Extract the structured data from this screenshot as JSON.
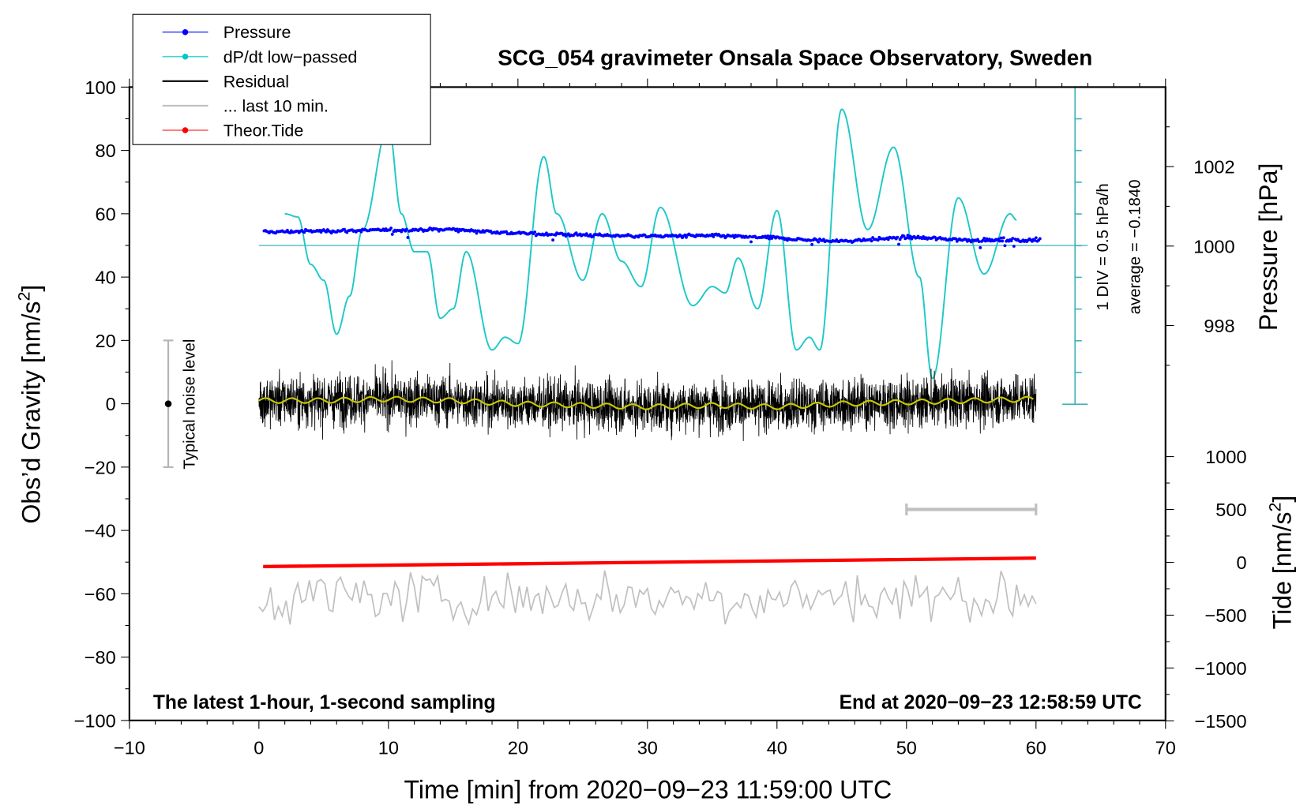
{
  "chart_data": {
    "type": "line",
    "title": "SCG_054 gravimeter Onsala Space Observatory, Sweden",
    "xlabel": "Time [min] from 2020−09−23 11:59:00 UTC",
    "ylabel_left": "Obs’d Gravity [nm/s",
    "ylabel_left_sup": "2",
    "ylabel_left_end": "]",
    "ylabel_right_pressure": "Pressure [hPa]",
    "ylabel_right_tide": "Tide [nm/s",
    "ylabel_right_tide_sup": "2",
    "ylabel_right_tide_end": "]",
    "xlim": [
      -10,
      70
    ],
    "ylim_left": [
      -100,
      100
    ],
    "x_ticks": [
      "−10",
      "0",
      "10",
      "20",
      "30",
      "40",
      "50",
      "60",
      "70"
    ],
    "y_ticks_left": [
      "100",
      "80",
      "60",
      "40",
      "20",
      "0",
      "−20",
      "−40",
      "−60",
      "−80",
      "−100"
    ],
    "pressure_ticks": [
      "1002",
      "1000",
      "998"
    ],
    "tide_ticks": [
      "1000",
      "500",
      "0",
      "−500",
      "−1000",
      "−1500"
    ],
    "note_left": "The latest 1-hour, 1-second sampling",
    "note_right": "End at 2020−09−23 12:58:59 UTC",
    "dpdt_scale_label": "1 DIV = 0.5 hPa/h",
    "dpdt_average_label": "average = −0.1840",
    "dpdt_average": -0.184,
    "dpdt_div_hpa_per_h": 0.5,
    "noise_label": "Typical noise level",
    "noise_level_range": [
      -20,
      20
    ],
    "last10_bar_x": [
      50,
      60
    ],
    "last10_bar_tide": 500,
    "legend": [
      {
        "label": "Pressure",
        "color": "#0000ff",
        "style": "line-dot"
      },
      {
        "label": "dP/dt low−passed",
        "color": "#00c8c8",
        "style": "line-dot"
      },
      {
        "label": "Residual",
        "color": "#000000",
        "style": "line"
      },
      {
        "label": "... last 10 min.",
        "color": "#c0c0c0",
        "style": "line"
      },
      {
        "label": "Theor.Tide",
        "color": "#ff0000",
        "style": "line-dot"
      }
    ],
    "legend_position": "top-left",
    "series": [
      {
        "name": "Pressure",
        "unit": "hPa",
        "color": "#0000ff",
        "t": [
          0,
          5,
          10,
          15,
          20,
          25,
          30,
          35,
          40,
          42,
          45,
          48,
          50,
          55,
          60
        ],
        "values": [
          1000.35,
          1000.38,
          1000.4,
          1000.42,
          1000.32,
          1000.28,
          1000.25,
          1000.26,
          1000.2,
          1000.16,
          1000.12,
          1000.18,
          1000.22,
          1000.15,
          1000.15
        ]
      },
      {
        "name": "dP/dt low-passed (anomaly from average)",
        "unit": "hPa/h",
        "color": "#1ec8c8",
        "t": [
          2,
          3,
          4,
          5,
          6,
          7,
          8,
          10,
          11,
          12,
          13,
          14,
          15,
          16,
          18,
          19,
          20,
          22,
          23,
          25,
          26.5,
          28,
          29.5,
          31,
          33.5,
          35,
          36,
          37,
          38.5,
          40,
          41.5,
          42.5,
          43.3,
          45,
          47,
          49,
          51,
          52,
          54,
          56,
          58,
          58.5
        ],
        "values": [
          0.5,
          0.45,
          -0.3,
          -0.55,
          -1.4,
          -0.8,
          0.25,
          1.9,
          0.5,
          -0.1,
          -0.1,
          -1.15,
          -1.0,
          -0.1,
          -1.65,
          -1.45,
          -1.55,
          1.4,
          0.5,
          -0.55,
          0.5,
          -0.25,
          -0.65,
          0.6,
          -0.95,
          -0.65,
          -0.75,
          -0.2,
          -1.0,
          0.55,
          -1.65,
          -1.45,
          -1.65,
          2.15,
          0.25,
          1.55,
          -0.5,
          -2.1,
          0.75,
          -0.45,
          0.5,
          0.4
        ]
      },
      {
        "name": "Residual low-passed",
        "unit": "nm/s2",
        "color": "#c8c800",
        "t": [
          0,
          5,
          10,
          15,
          20,
          25,
          30,
          35,
          40,
          45,
          50,
          55,
          60
        ],
        "values": [
          1,
          1,
          1.5,
          1,
          0,
          -0.5,
          -1,
          -0.5,
          -1,
          0,
          0.5,
          1,
          1.5
        ]
      },
      {
        "name": "Theor.Tide",
        "unit": "nm/s2",
        "color": "#ff0000",
        "t": [
          0,
          60
        ],
        "values": [
          -40,
          40
        ]
      }
    ]
  }
}
